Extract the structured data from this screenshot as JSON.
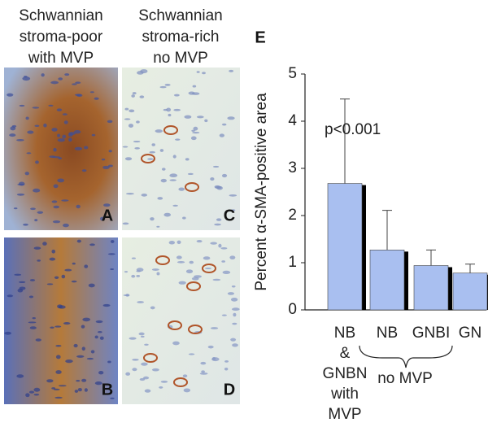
{
  "panels": {
    "headings": [
      [
        "Schwannian",
        "stroma-poor",
        "with MVP"
      ],
      [
        "Schwannian",
        "stroma-rich",
        "no MVP"
      ]
    ],
    "labels": [
      "A",
      "C",
      "B",
      "D"
    ]
  },
  "chart_data": {
    "type": "bar",
    "panel_label": "E",
    "y_label": "Percent  α-SMA-positive area",
    "categories": [
      "NB & GNBN with MVP",
      "NB",
      "GNBI",
      "GN"
    ],
    "values": [
      2.68,
      1.27,
      0.94,
      0.78
    ],
    "errors": [
      1.79,
      0.84,
      0.33,
      0.19
    ],
    "color": "#a9bff0",
    "ylim": [
      0,
      5
    ],
    "yticks": [
      0,
      1,
      2,
      3,
      4,
      5
    ],
    "annotations": [
      "p<0.001",
      "no MVP"
    ]
  }
}
